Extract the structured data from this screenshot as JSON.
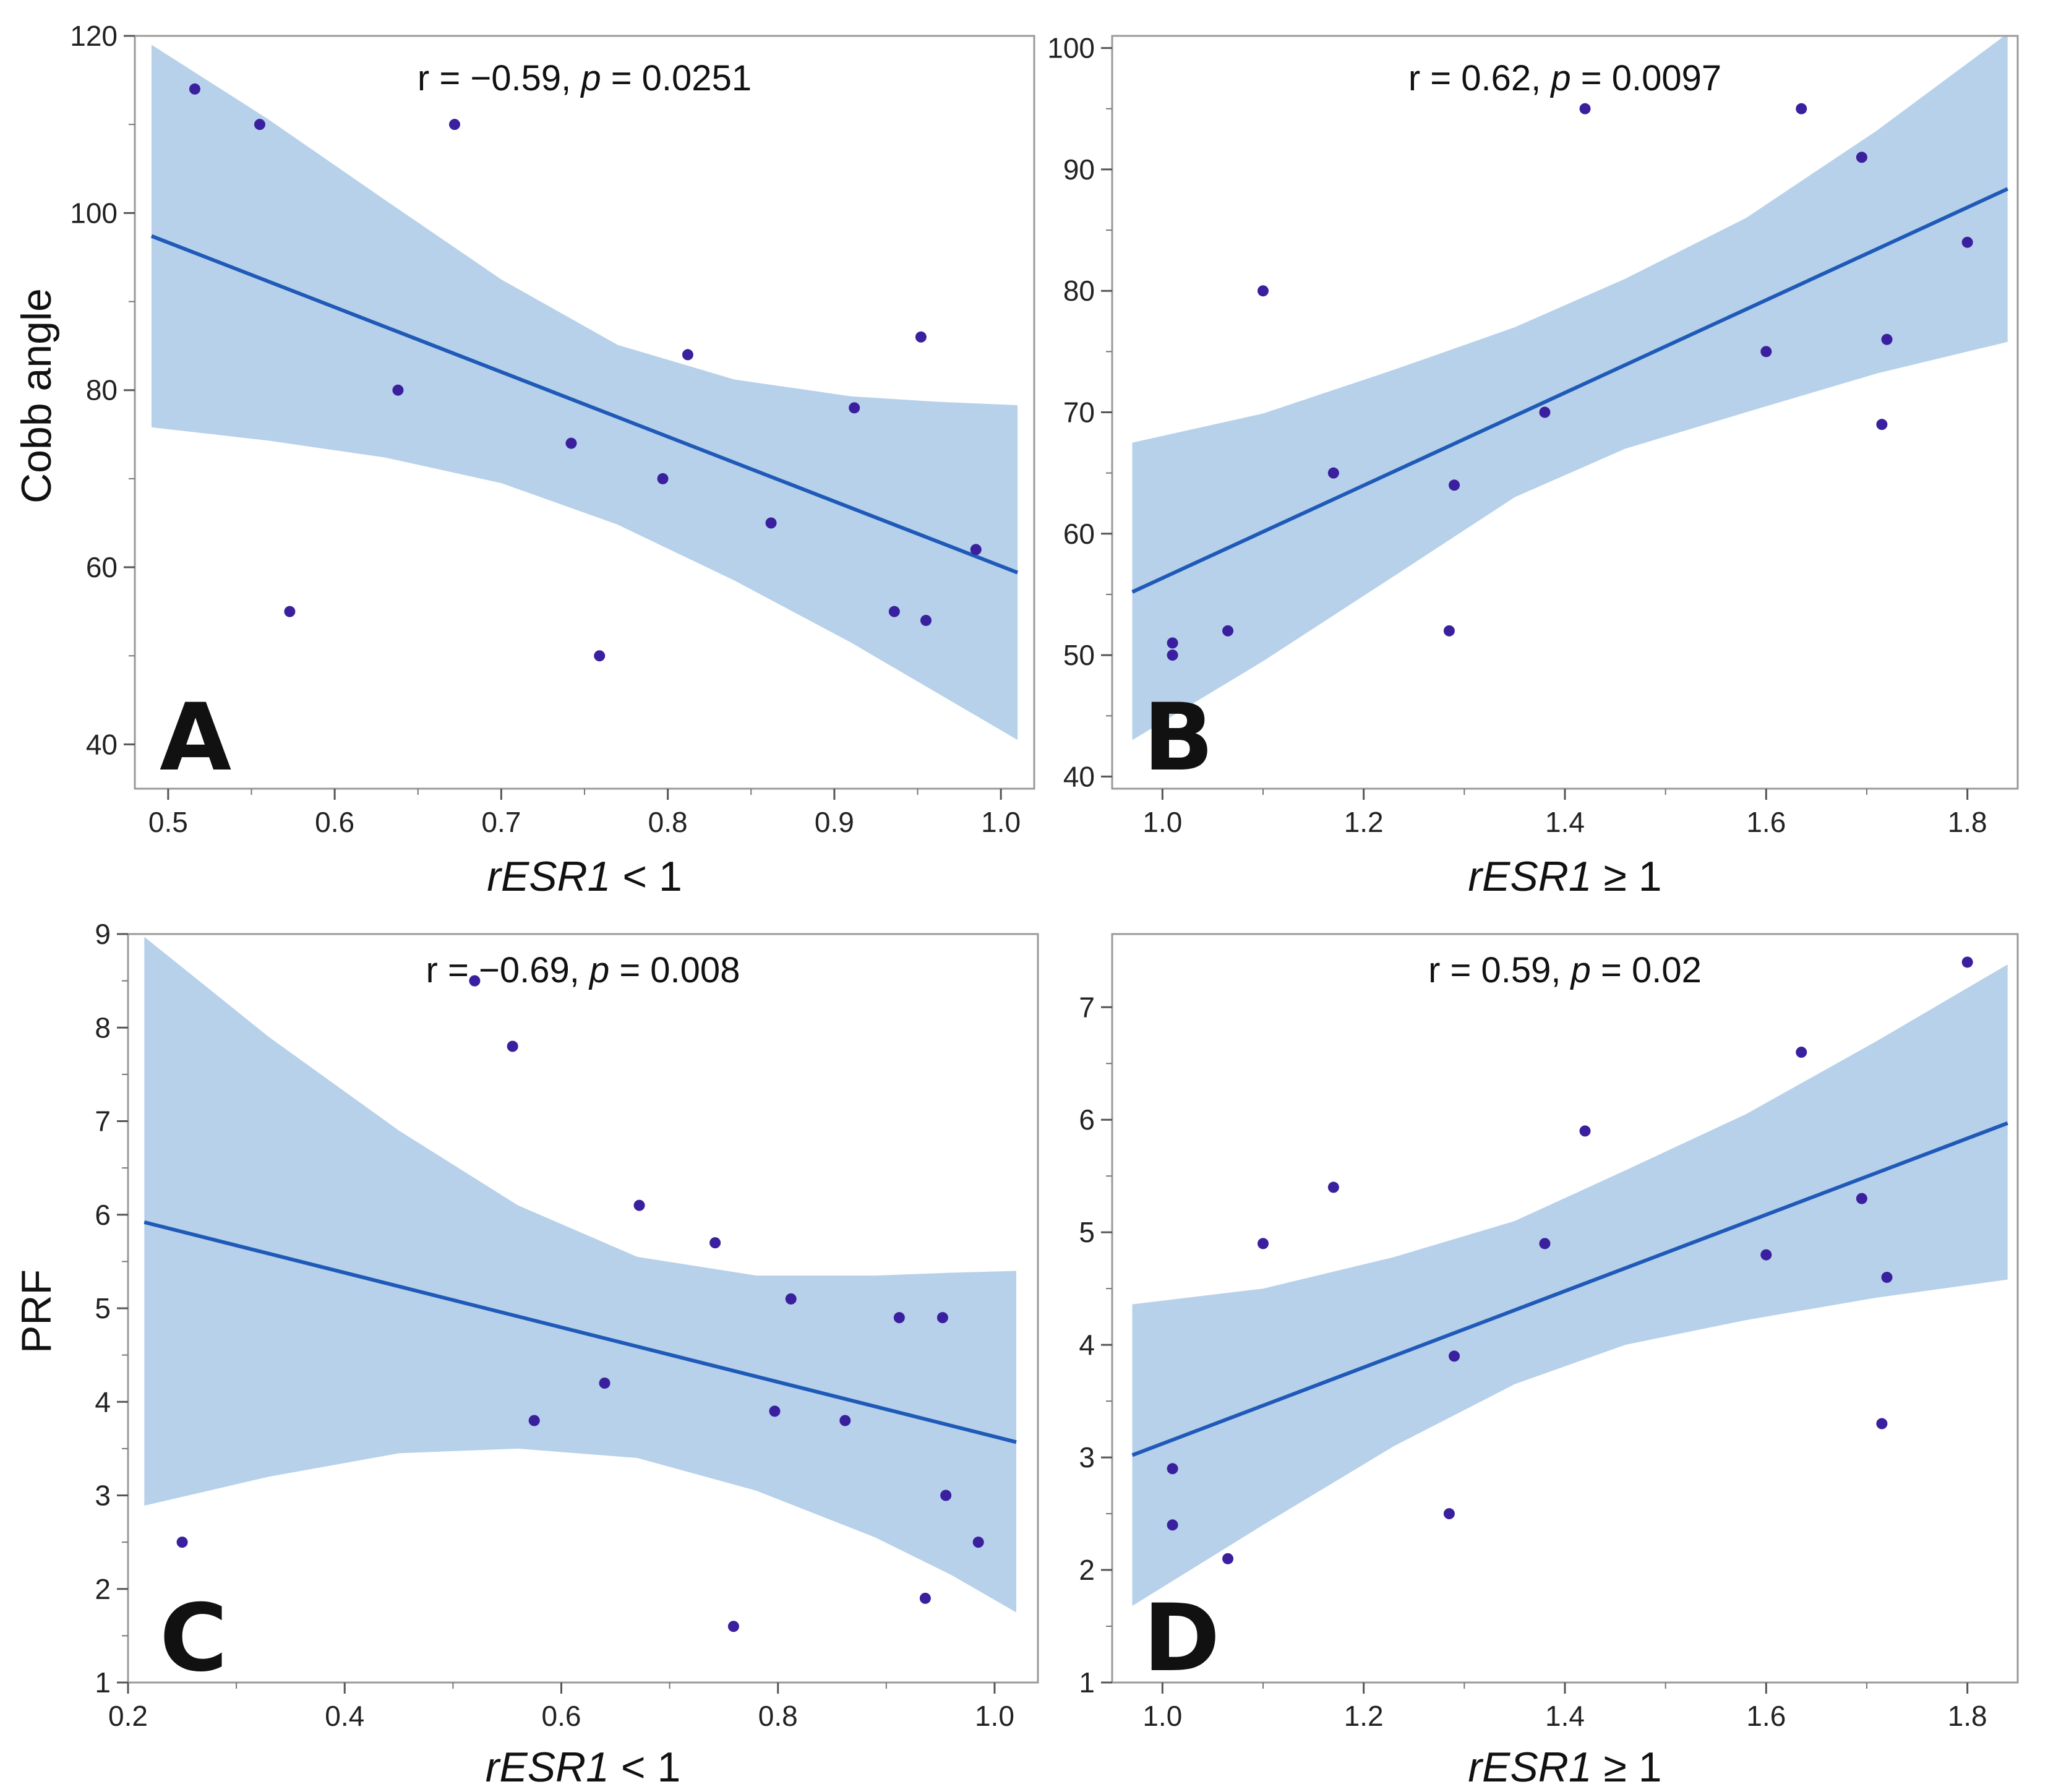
{
  "chart_data": [
    {
      "type": "scatter",
      "panel_label": "A",
      "ylabel": "Cobb angle",
      "xlabel": "rESR1 < 1",
      "xlabel_parts": [
        {
          "text": "rESR1",
          "italic": true
        },
        {
          "text": " < 1",
          "italic": false
        }
      ],
      "annotation_parts": [
        {
          "text": "r = −0.59, ",
          "italic": false
        },
        {
          "text": "p",
          "italic": true
        },
        {
          "text": " = 0.0251",
          "italic": false
        }
      ],
      "xlim": [
        0.48,
        1.02
      ],
      "ylim": [
        35,
        120
      ],
      "xticks": [
        0.5,
        0.6,
        0.7,
        0.8,
        0.9,
        1.0
      ],
      "xtick_labels": [
        "0.5",
        "0.6",
        "0.7",
        "0.8",
        "0.9",
        "1.0"
      ],
      "yticks": [
        40,
        60,
        80,
        100,
        120
      ],
      "ytick_labels": [
        "40",
        "60",
        "80",
        "100",
        "120"
      ],
      "x": [
        0.516,
        0.555,
        0.573,
        0.638,
        0.672,
        0.742,
        0.759,
        0.797,
        0.812,
        0.862,
        0.912,
        0.936,
        0.952,
        0.955,
        0.985
      ],
      "y": [
        114,
        110,
        55,
        80,
        110,
        74,
        50,
        70,
        84,
        65,
        78,
        55,
        86,
        54,
        62
      ],
      "fit_line": {
        "x": [
          0.49,
          1.01
        ],
        "y": [
          97.4,
          59.4
        ]
      },
      "ci_band": {
        "x": [
          0.49,
          0.56,
          0.63,
          0.7,
          0.77,
          0.84,
          0.91,
          0.96,
          1.01
        ],
        "lower": [
          75.8,
          74.3,
          72.4,
          69.5,
          64.8,
          58.5,
          51.5,
          46.0,
          40.5
        ],
        "upper": [
          119.0,
          110.6,
          101.5,
          92.5,
          85.1,
          81.2,
          79.3,
          78.7,
          78.3
        ]
      },
      "grid": false,
      "point_color": "#3a1f9e",
      "line_color": "#1f5ab8",
      "band_color": "#b7d1ea"
    },
    {
      "type": "scatter",
      "panel_label": "B",
      "ylabel": "",
      "xlabel": "rESR1 ≥ 1",
      "xlabel_parts": [
        {
          "text": "rESR1",
          "italic": true
        },
        {
          "text": " ≥ 1",
          "italic": false
        }
      ],
      "annotation_parts": [
        {
          "text": "r = 0.62, ",
          "italic": false
        },
        {
          "text": "p",
          "italic": true
        },
        {
          "text": " = 0.0097",
          "italic": false
        }
      ],
      "xlim": [
        0.95,
        1.85
      ],
      "ylim": [
        39,
        101
      ],
      "xticks": [
        1.0,
        1.2,
        1.4,
        1.6,
        1.8
      ],
      "xtick_labels": [
        "1.0",
        "1.2",
        "1.4",
        "1.6",
        "1.8"
      ],
      "yticks": [
        40,
        50,
        60,
        70,
        80,
        90,
        100
      ],
      "ytick_labels": [
        "40",
        "50",
        "60",
        "70",
        "80",
        "90",
        "100"
      ],
      "x": [
        1.01,
        1.01,
        1.065,
        1.1,
        1.17,
        1.285,
        1.29,
        1.38,
        1.42,
        1.6,
        1.635,
        1.695,
        1.715,
        1.72,
        1.8
      ],
      "y": [
        51,
        50,
        52,
        80,
        65,
        52,
        64,
        70,
        95,
        75,
        95,
        91,
        69,
        76,
        84
      ],
      "fit_line": {
        "x": [
          0.97,
          1.84
        ],
        "y": [
          55.2,
          88.4
        ]
      },
      "ci_band": {
        "x": [
          0.97,
          1.1,
          1.23,
          1.35,
          1.46,
          1.58,
          1.71,
          1.84
        ],
        "lower": [
          43.0,
          49.5,
          56.5,
          63.0,
          67.0,
          70.0,
          73.2,
          75.8
        ],
        "upper": [
          67.5,
          69.9,
          73.5,
          77.0,
          81.0,
          86.0,
          93.2,
          101.2
        ]
      },
      "grid": false,
      "point_color": "#3a1f9e",
      "line_color": "#1f5ab8",
      "band_color": "#b7d1ea"
    },
    {
      "type": "scatter",
      "panel_label": "C",
      "ylabel": "PRF",
      "xlabel": "rESR1 < 1",
      "xlabel_parts": [
        {
          "text": "rESR1",
          "italic": true
        },
        {
          "text": " < 1",
          "italic": false
        }
      ],
      "annotation_parts": [
        {
          "text": "r = −0.69, ",
          "italic": false
        },
        {
          "text": "p",
          "italic": true
        },
        {
          "text": " = 0.008",
          "italic": false
        }
      ],
      "xlim": [
        0.2,
        1.04
      ],
      "ylim": [
        1,
        9
      ],
      "xticks": [
        0.2,
        0.4,
        0.6,
        0.8,
        1.0
      ],
      "xtick_labels": [
        "0.2",
        "0.4",
        "0.6",
        "0.8",
        "1.0"
      ],
      "yticks": [
        1,
        2,
        3,
        4,
        5,
        6,
        7,
        8,
        9
      ],
      "ytick_labels": [
        "1",
        "2",
        "3",
        "4",
        "5",
        "6",
        "7",
        "8",
        "9"
      ],
      "x": [
        0.25,
        0.52,
        0.555,
        0.575,
        0.64,
        0.672,
        0.742,
        0.759,
        0.797,
        0.812,
        0.862,
        0.912,
        0.936,
        0.952,
        0.955,
        0.985
      ],
      "y": [
        2.5,
        8.5,
        7.8,
        3.8,
        4.2,
        6.1,
        5.7,
        1.6,
        3.9,
        5.1,
        3.8,
        4.9,
        1.9,
        4.9,
        3.0,
        2.5
      ],
      "fit_line": {
        "x": [
          0.215,
          1.02
        ],
        "y": [
          5.92,
          3.57
        ]
      },
      "ci_band": {
        "x": [
          0.215,
          0.33,
          0.45,
          0.56,
          0.67,
          0.78,
          0.89,
          0.96,
          1.02
        ],
        "lower": [
          2.89,
          3.2,
          3.45,
          3.5,
          3.4,
          3.05,
          2.55,
          2.15,
          1.75
        ],
        "upper": [
          8.97,
          7.9,
          6.9,
          6.1,
          5.55,
          5.35,
          5.35,
          5.38,
          5.4
        ]
      },
      "grid": false,
      "point_color": "#3a1f9e",
      "line_color": "#1f5ab8",
      "band_color": "#b7d1ea"
    },
    {
      "type": "scatter",
      "panel_label": "D",
      "ylabel": "",
      "xlabel": "rESR1 ≥ 1",
      "xlabel_parts": [
        {
          "text": "rESR1",
          "italic": true
        },
        {
          "text": " ≥ 1",
          "italic": false
        }
      ],
      "annotation_parts": [
        {
          "text": "r = 0.59, ",
          "italic": false
        },
        {
          "text": "p",
          "italic": true
        },
        {
          "text": " = 0.02",
          "italic": false
        }
      ],
      "xlim": [
        0.95,
        1.85
      ],
      "ylim": [
        1,
        7.65
      ],
      "xticks": [
        1.0,
        1.2,
        1.4,
        1.6,
        1.8
      ],
      "xtick_labels": [
        "1.0",
        "1.2",
        "1.4",
        "1.6",
        "1.8"
      ],
      "yticks": [
        1,
        2,
        3,
        4,
        5,
        6,
        7
      ],
      "ytick_labels": [
        "1",
        "2",
        "3",
        "4",
        "5",
        "6",
        "7"
      ],
      "x": [
        1.01,
        1.01,
        1.065,
        1.1,
        1.17,
        1.285,
        1.29,
        1.38,
        1.42,
        1.6,
        1.635,
        1.695,
        1.715,
        1.72,
        1.8
      ],
      "y": [
        2.9,
        2.4,
        2.1,
        4.9,
        5.4,
        2.5,
        3.9,
        4.9,
        5.9,
        4.8,
        6.6,
        5.3,
        3.3,
        4.6,
        7.4
      ],
      "fit_line": {
        "x": [
          0.97,
          1.84
        ],
        "y": [
          3.02,
          5.97
        ]
      },
      "ci_band": {
        "x": [
          0.97,
          1.1,
          1.23,
          1.35,
          1.46,
          1.58,
          1.71,
          1.84
        ],
        "lower": [
          1.68,
          2.4,
          3.1,
          3.65,
          4.0,
          4.22,
          4.42,
          4.58
        ],
        "upper": [
          4.36,
          4.5,
          4.78,
          5.1,
          5.55,
          6.05,
          6.7,
          7.38
        ]
      },
      "grid": false,
      "point_color": "#3a1f9e",
      "line_color": "#1f5ab8",
      "band_color": "#b7d1ea"
    }
  ]
}
